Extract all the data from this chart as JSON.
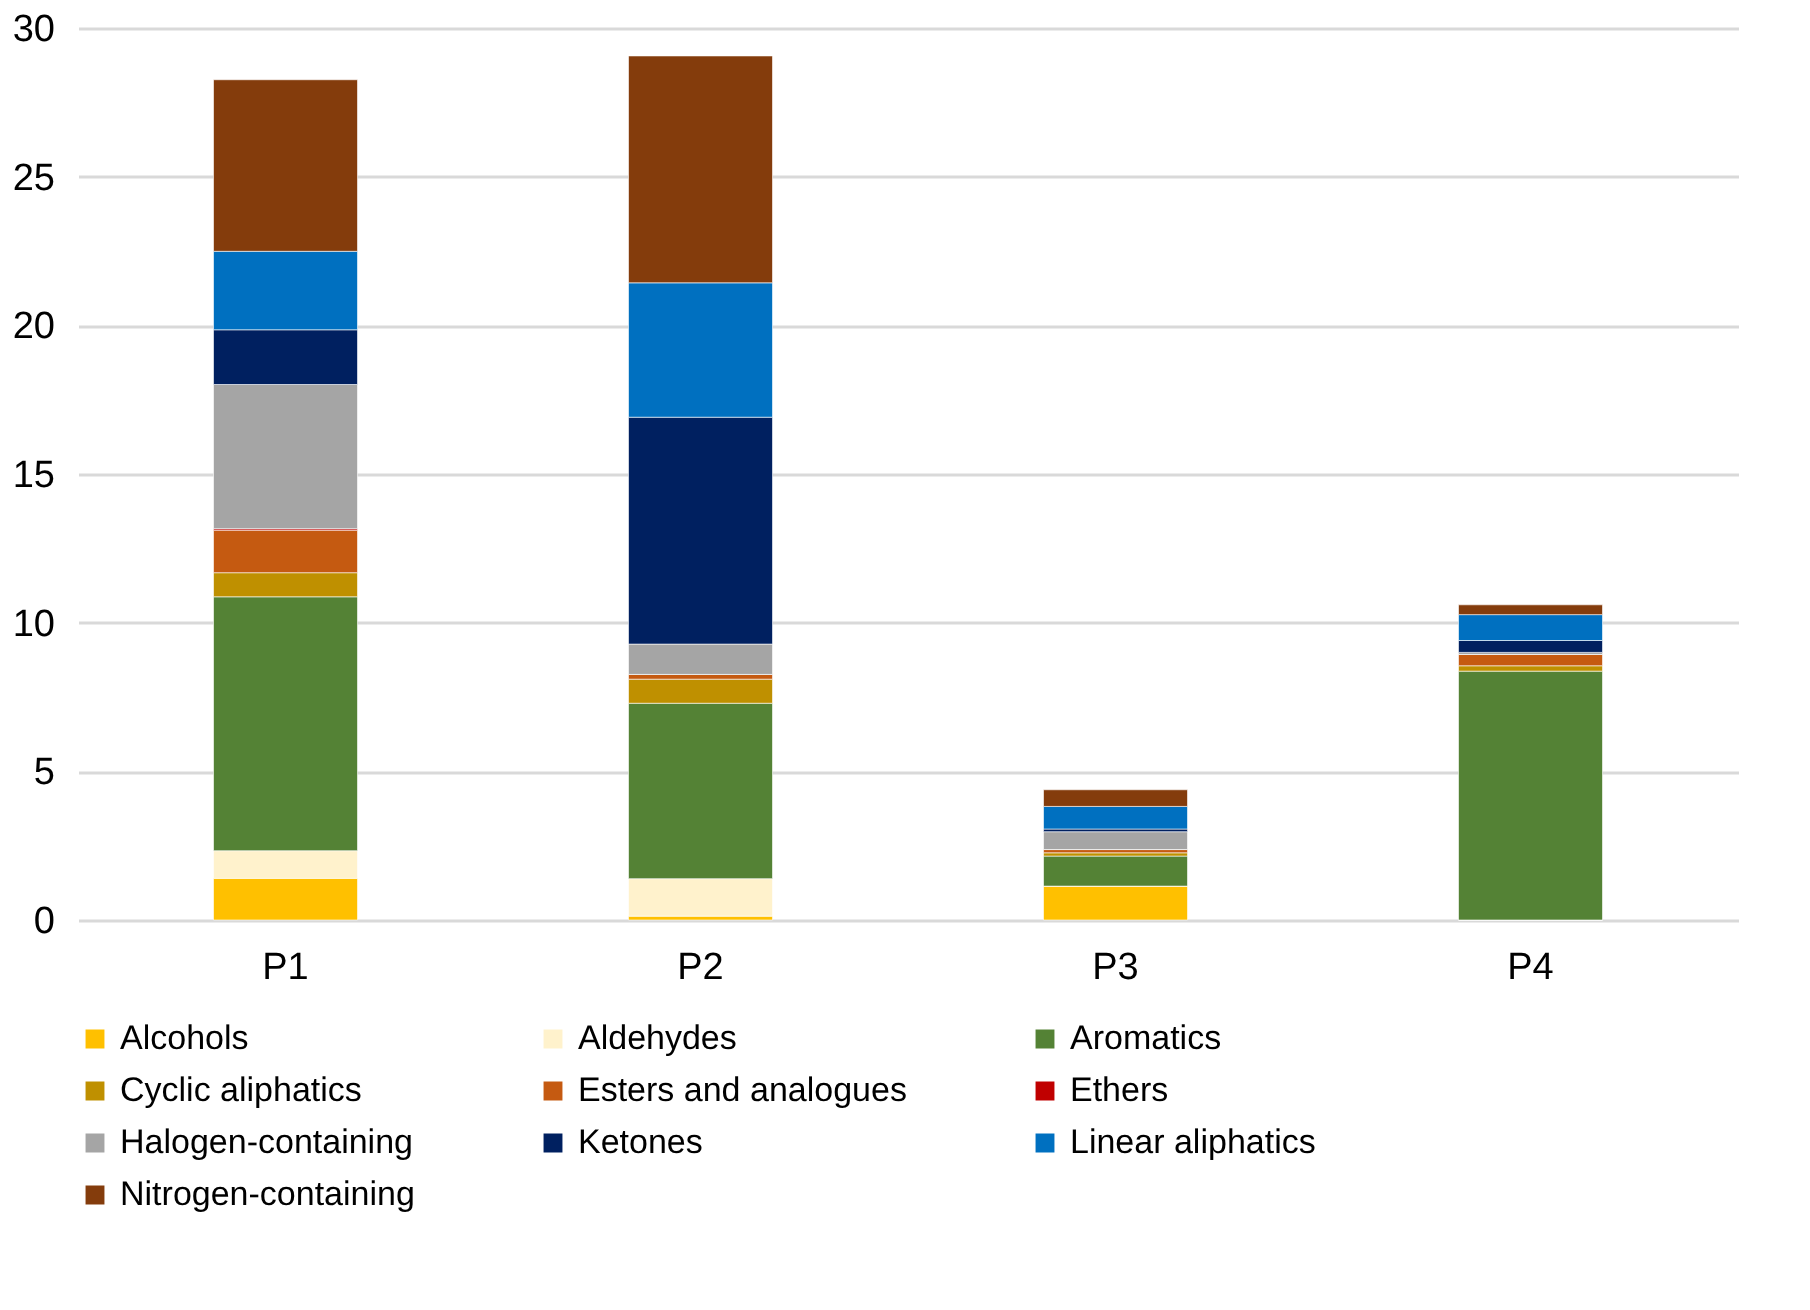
{
  "chart_data": {
    "type": "bar",
    "stacked": true,
    "categories": [
      "P1",
      "P2",
      "P3",
      "P4"
    ],
    "series": [
      {
        "name": "Alcohols",
        "color": "#ffc000",
        "values": [
          1.4,
          0.13,
          1.14,
          0
        ]
      },
      {
        "name": "Aldehydes",
        "color": "#fff2cc",
        "values": [
          0.93,
          1.26,
          0,
          0
        ]
      },
      {
        "name": "Aromatics",
        "color": "#548235",
        "values": [
          8.54,
          5.9,
          1.01,
          8.37
        ]
      },
      {
        "name": "Cyclic aliphatics",
        "color": "#bf9000",
        "values": [
          0.81,
          0.81,
          0.11,
          0.18
        ]
      },
      {
        "name": "Esters and analogues",
        "color": "#c55a11",
        "values": [
          1.43,
          0.16,
          0.11,
          0.38
        ]
      },
      {
        "name": "Ethers",
        "color": "#c00000",
        "values": [
          0.05,
          0,
          0,
          0
        ]
      },
      {
        "name": "Halogen-containing",
        "color": "#a5a5a5",
        "values": [
          4.85,
          1.02,
          0.6,
          0.07
        ]
      },
      {
        "name": "Ketones",
        "color": "#002060",
        "values": [
          1.84,
          7.63,
          0.09,
          0.4
        ]
      },
      {
        "name": "Linear aliphatics",
        "color": "#0070c0",
        "values": [
          2.64,
          4.52,
          0.76,
          0.87
        ]
      },
      {
        "name": "Nitrogen-containing",
        "color": "#843c0c",
        "values": [
          5.77,
          7.63,
          0.56,
          0.33
        ]
      }
    ],
    "ylim": [
      0,
      30
    ],
    "yticks": [
      0,
      5,
      10,
      15,
      20,
      25,
      30
    ],
    "grid": "y",
    "legend": "bottom"
  }
}
